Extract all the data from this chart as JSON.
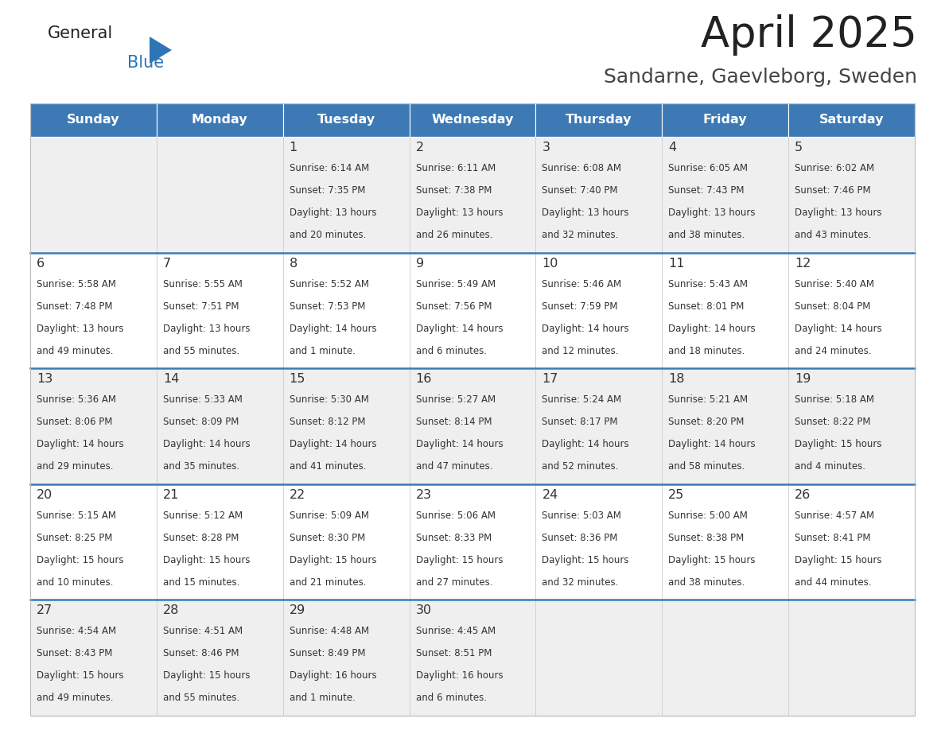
{
  "title": "April 2025",
  "subtitle": "Sandarne, Gaevleborg, Sweden",
  "days_of_week": [
    "Sunday",
    "Monday",
    "Tuesday",
    "Wednesday",
    "Thursday",
    "Friday",
    "Saturday"
  ],
  "header_bg": "#3D7AB5",
  "header_text_color": "#FFFFFF",
  "cell_bg_even": "#EFEFEF",
  "cell_bg_odd": "#FFFFFF",
  "row_line_color": "#3D7AB5",
  "text_color": "#333333",
  "calendar_data": [
    [
      {
        "day": "",
        "sunrise": "",
        "sunset": "",
        "daylight_l1": "",
        "daylight_l2": ""
      },
      {
        "day": "",
        "sunrise": "",
        "sunset": "",
        "daylight_l1": "",
        "daylight_l2": ""
      },
      {
        "day": "1",
        "sunrise": "Sunrise: 6:14 AM",
        "sunset": "Sunset: 7:35 PM",
        "daylight_l1": "Daylight: 13 hours",
        "daylight_l2": "and 20 minutes."
      },
      {
        "day": "2",
        "sunrise": "Sunrise: 6:11 AM",
        "sunset": "Sunset: 7:38 PM",
        "daylight_l1": "Daylight: 13 hours",
        "daylight_l2": "and 26 minutes."
      },
      {
        "day": "3",
        "sunrise": "Sunrise: 6:08 AM",
        "sunset": "Sunset: 7:40 PM",
        "daylight_l1": "Daylight: 13 hours",
        "daylight_l2": "and 32 minutes."
      },
      {
        "day": "4",
        "sunrise": "Sunrise: 6:05 AM",
        "sunset": "Sunset: 7:43 PM",
        "daylight_l1": "Daylight: 13 hours",
        "daylight_l2": "and 38 minutes."
      },
      {
        "day": "5",
        "sunrise": "Sunrise: 6:02 AM",
        "sunset": "Sunset: 7:46 PM",
        "daylight_l1": "Daylight: 13 hours",
        "daylight_l2": "and 43 minutes."
      }
    ],
    [
      {
        "day": "6",
        "sunrise": "Sunrise: 5:58 AM",
        "sunset": "Sunset: 7:48 PM",
        "daylight_l1": "Daylight: 13 hours",
        "daylight_l2": "and 49 minutes."
      },
      {
        "day": "7",
        "sunrise": "Sunrise: 5:55 AM",
        "sunset": "Sunset: 7:51 PM",
        "daylight_l1": "Daylight: 13 hours",
        "daylight_l2": "and 55 minutes."
      },
      {
        "day": "8",
        "sunrise": "Sunrise: 5:52 AM",
        "sunset": "Sunset: 7:53 PM",
        "daylight_l1": "Daylight: 14 hours",
        "daylight_l2": "and 1 minute."
      },
      {
        "day": "9",
        "sunrise": "Sunrise: 5:49 AM",
        "sunset": "Sunset: 7:56 PM",
        "daylight_l1": "Daylight: 14 hours",
        "daylight_l2": "and 6 minutes."
      },
      {
        "day": "10",
        "sunrise": "Sunrise: 5:46 AM",
        "sunset": "Sunset: 7:59 PM",
        "daylight_l1": "Daylight: 14 hours",
        "daylight_l2": "and 12 minutes."
      },
      {
        "day": "11",
        "sunrise": "Sunrise: 5:43 AM",
        "sunset": "Sunset: 8:01 PM",
        "daylight_l1": "Daylight: 14 hours",
        "daylight_l2": "and 18 minutes."
      },
      {
        "day": "12",
        "sunrise": "Sunrise: 5:40 AM",
        "sunset": "Sunset: 8:04 PM",
        "daylight_l1": "Daylight: 14 hours",
        "daylight_l2": "and 24 minutes."
      }
    ],
    [
      {
        "day": "13",
        "sunrise": "Sunrise: 5:36 AM",
        "sunset": "Sunset: 8:06 PM",
        "daylight_l1": "Daylight: 14 hours",
        "daylight_l2": "and 29 minutes."
      },
      {
        "day": "14",
        "sunrise": "Sunrise: 5:33 AM",
        "sunset": "Sunset: 8:09 PM",
        "daylight_l1": "Daylight: 14 hours",
        "daylight_l2": "and 35 minutes."
      },
      {
        "day": "15",
        "sunrise": "Sunrise: 5:30 AM",
        "sunset": "Sunset: 8:12 PM",
        "daylight_l1": "Daylight: 14 hours",
        "daylight_l2": "and 41 minutes."
      },
      {
        "day": "16",
        "sunrise": "Sunrise: 5:27 AM",
        "sunset": "Sunset: 8:14 PM",
        "daylight_l1": "Daylight: 14 hours",
        "daylight_l2": "and 47 minutes."
      },
      {
        "day": "17",
        "sunrise": "Sunrise: 5:24 AM",
        "sunset": "Sunset: 8:17 PM",
        "daylight_l1": "Daylight: 14 hours",
        "daylight_l2": "and 52 minutes."
      },
      {
        "day": "18",
        "sunrise": "Sunrise: 5:21 AM",
        "sunset": "Sunset: 8:20 PM",
        "daylight_l1": "Daylight: 14 hours",
        "daylight_l2": "and 58 minutes."
      },
      {
        "day": "19",
        "sunrise": "Sunrise: 5:18 AM",
        "sunset": "Sunset: 8:22 PM",
        "daylight_l1": "Daylight: 15 hours",
        "daylight_l2": "and 4 minutes."
      }
    ],
    [
      {
        "day": "20",
        "sunrise": "Sunrise: 5:15 AM",
        "sunset": "Sunset: 8:25 PM",
        "daylight_l1": "Daylight: 15 hours",
        "daylight_l2": "and 10 minutes."
      },
      {
        "day": "21",
        "sunrise": "Sunrise: 5:12 AM",
        "sunset": "Sunset: 8:28 PM",
        "daylight_l1": "Daylight: 15 hours",
        "daylight_l2": "and 15 minutes."
      },
      {
        "day": "22",
        "sunrise": "Sunrise: 5:09 AM",
        "sunset": "Sunset: 8:30 PM",
        "daylight_l1": "Daylight: 15 hours",
        "daylight_l2": "and 21 minutes."
      },
      {
        "day": "23",
        "sunrise": "Sunrise: 5:06 AM",
        "sunset": "Sunset: 8:33 PM",
        "daylight_l1": "Daylight: 15 hours",
        "daylight_l2": "and 27 minutes."
      },
      {
        "day": "24",
        "sunrise": "Sunrise: 5:03 AM",
        "sunset": "Sunset: 8:36 PM",
        "daylight_l1": "Daylight: 15 hours",
        "daylight_l2": "and 32 minutes."
      },
      {
        "day": "25",
        "sunrise": "Sunrise: 5:00 AM",
        "sunset": "Sunset: 8:38 PM",
        "daylight_l1": "Daylight: 15 hours",
        "daylight_l2": "and 38 minutes."
      },
      {
        "day": "26",
        "sunrise": "Sunrise: 4:57 AM",
        "sunset": "Sunset: 8:41 PM",
        "daylight_l1": "Daylight: 15 hours",
        "daylight_l2": "and 44 minutes."
      }
    ],
    [
      {
        "day": "27",
        "sunrise": "Sunrise: 4:54 AM",
        "sunset": "Sunset: 8:43 PM",
        "daylight_l1": "Daylight: 15 hours",
        "daylight_l2": "and 49 minutes."
      },
      {
        "day": "28",
        "sunrise": "Sunrise: 4:51 AM",
        "sunset": "Sunset: 8:46 PM",
        "daylight_l1": "Daylight: 15 hours",
        "daylight_l2": "and 55 minutes."
      },
      {
        "day": "29",
        "sunrise": "Sunrise: 4:48 AM",
        "sunset": "Sunset: 8:49 PM",
        "daylight_l1": "Daylight: 16 hours",
        "daylight_l2": "and 1 minute."
      },
      {
        "day": "30",
        "sunrise": "Sunrise: 4:45 AM",
        "sunset": "Sunset: 8:51 PM",
        "daylight_l1": "Daylight: 16 hours",
        "daylight_l2": "and 6 minutes."
      },
      {
        "day": "",
        "sunrise": "",
        "sunset": "",
        "daylight_l1": "",
        "daylight_l2": ""
      },
      {
        "day": "",
        "sunrise": "",
        "sunset": "",
        "daylight_l1": "",
        "daylight_l2": ""
      },
      {
        "day": "",
        "sunrise": "",
        "sunset": "",
        "daylight_l1": "",
        "daylight_l2": ""
      }
    ]
  ],
  "logo_general_color": "#222222",
  "logo_blue_color": "#2E75B6",
  "title_color": "#222222",
  "subtitle_color": "#444444",
  "fig_width": 11.88,
  "fig_height": 9.18,
  "dpi": 100
}
